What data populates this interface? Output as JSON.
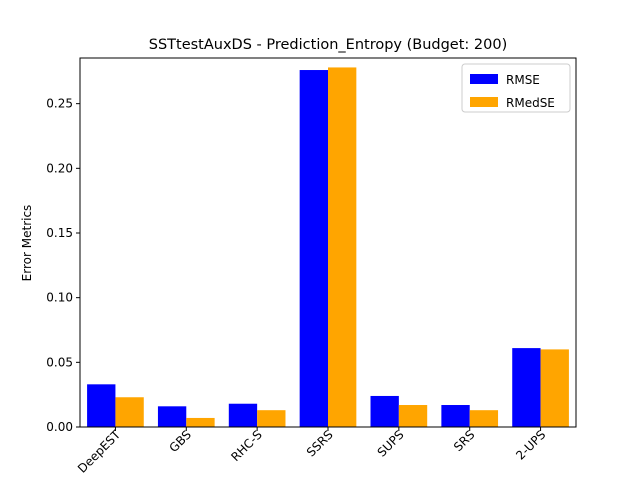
{
  "chart_data": {
    "type": "bar",
    "title": "SSTtestAuxDS - Prediction_Entropy (Budget: 200)",
    "xlabel": "",
    "ylabel": "Error Metrics",
    "categories": [
      "DeepEST",
      "GBS",
      "RHC-S",
      "SSRS",
      "SUPS",
      "SRS",
      "2-UPS"
    ],
    "series": [
      {
        "name": "RMSE",
        "color": "#0000ff",
        "values": [
          0.033,
          0.016,
          0.018,
          0.276,
          0.024,
          0.017,
          0.061
        ]
      },
      {
        "name": "RMedSE",
        "color": "#ffa500",
        "values": [
          0.023,
          0.007,
          0.013,
          0.278,
          0.017,
          0.013,
          0.06
        ]
      }
    ],
    "ylim": [
      0,
      0.2853
    ],
    "yticks": [
      "0.00",
      "0.05",
      "0.10",
      "0.15",
      "0.20",
      "0.25"
    ],
    "ytick_values": [
      0,
      0.05,
      0.1,
      0.15,
      0.2,
      0.25
    ],
    "legend_position": "upper right",
    "grid": false
  }
}
